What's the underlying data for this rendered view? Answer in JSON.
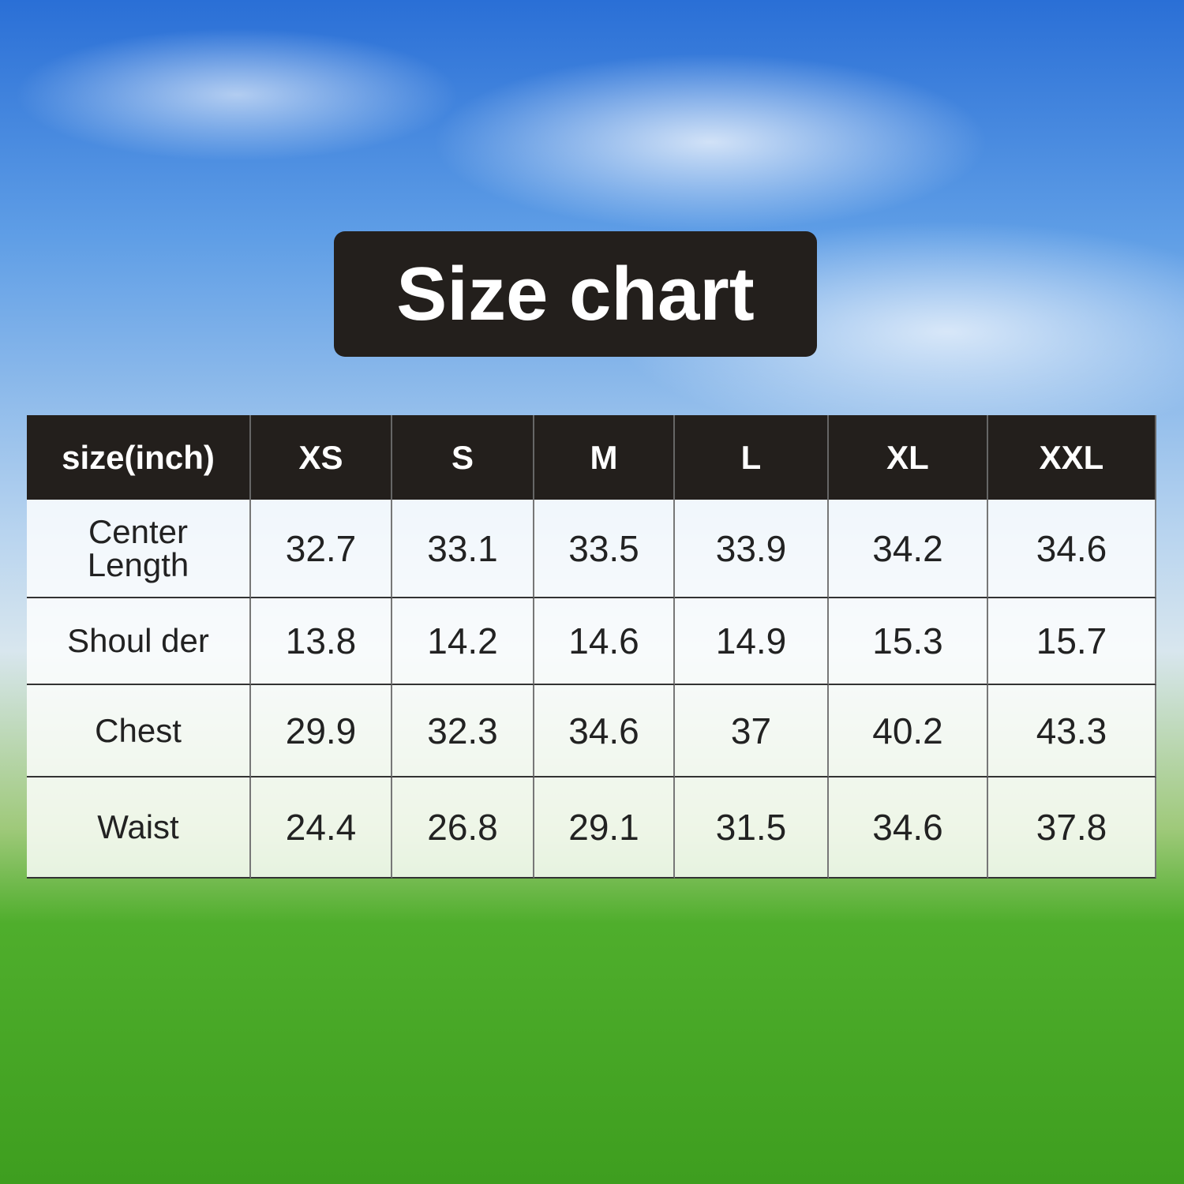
{
  "title": "Size chart",
  "table": {
    "header": [
      "size(inch)",
      "XS",
      "S",
      "M",
      "L",
      "XL",
      "XXL"
    ],
    "rows": [
      [
        "Center Length",
        "32.7",
        "33.1",
        "33.5",
        "33.9",
        "34.2",
        "34.6"
      ],
      [
        "Shoul der",
        "13.8",
        "14.2",
        "14.6",
        "14.9",
        "15.3",
        "15.7"
      ],
      [
        "Chest",
        "29.9",
        "32.3",
        "34.6",
        "37",
        "40.2",
        "43.3"
      ],
      [
        "Waist",
        "24.4",
        "26.8",
        "29.1",
        "31.5",
        "34.6",
        "37.8"
      ]
    ]
  }
}
